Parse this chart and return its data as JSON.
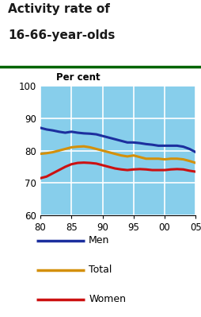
{
  "title_line1": "Activity rate of",
  "title_line2": "16-66-year-olds",
  "title_color": "#1a1a1a",
  "separator_color": "#006400",
  "ylabel": "Per cent",
  "ylim": [
    60,
    100
  ],
  "xlim": [
    80,
    105
  ],
  "yticks": [
    60,
    70,
    80,
    90,
    100
  ],
  "xticks": [
    80,
    85,
    90,
    95,
    100,
    105
  ],
  "xtick_labels": [
    "80",
    "85",
    "90",
    "95",
    "00",
    "05"
  ],
  "plot_bg": "#87ceeb",
  "grid_color": "#ffffff",
  "men_color": "#1c2f9e",
  "total_color": "#d4900a",
  "women_color": "#cc1111",
  "men_x": [
    80,
    81,
    82,
    83,
    84,
    85,
    86,
    87,
    88,
    89,
    90,
    91,
    92,
    93,
    94,
    95,
    96,
    97,
    98,
    99,
    100,
    101,
    102,
    103,
    104,
    105
  ],
  "men_y": [
    87.0,
    86.5,
    86.2,
    85.8,
    85.5,
    85.8,
    85.5,
    85.3,
    85.2,
    85.0,
    84.5,
    84.0,
    83.5,
    83.0,
    82.5,
    82.5,
    82.3,
    82.0,
    81.8,
    81.5,
    81.5,
    81.5,
    81.5,
    81.2,
    80.5,
    79.5
  ],
  "total_x": [
    80,
    81,
    82,
    83,
    84,
    85,
    86,
    87,
    88,
    89,
    90,
    91,
    92,
    93,
    94,
    95,
    96,
    97,
    98,
    99,
    100,
    101,
    102,
    103,
    104,
    105
  ],
  "total_y": [
    79.0,
    79.2,
    79.5,
    80.0,
    80.5,
    81.0,
    81.2,
    81.3,
    81.0,
    80.5,
    80.0,
    79.5,
    79.0,
    78.5,
    78.2,
    78.5,
    78.0,
    77.5,
    77.5,
    77.5,
    77.3,
    77.5,
    77.5,
    77.3,
    76.8,
    76.2
  ],
  "women_x": [
    80,
    81,
    82,
    83,
    84,
    85,
    86,
    87,
    88,
    89,
    90,
    91,
    92,
    93,
    94,
    95,
    96,
    97,
    98,
    99,
    100,
    101,
    102,
    103,
    104,
    105
  ],
  "women_y": [
    71.5,
    72.0,
    73.0,
    74.0,
    75.0,
    75.8,
    76.2,
    76.3,
    76.2,
    76.0,
    75.5,
    75.0,
    74.5,
    74.2,
    74.0,
    74.2,
    74.3,
    74.2,
    74.0,
    74.0,
    74.0,
    74.2,
    74.3,
    74.2,
    73.8,
    73.5
  ],
  "legend_labels": [
    "Men",
    "Total",
    "Women"
  ],
  "legend_colors": [
    "#1c2f9e",
    "#d4900a",
    "#cc1111"
  ],
  "line_width": 2.2,
  "title_fontsize": 11,
  "tick_fontsize": 8.5,
  "ylabel_fontsize": 8.5
}
